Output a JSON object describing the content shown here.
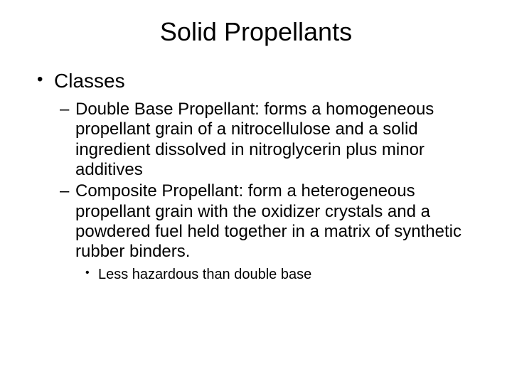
{
  "title": "Solid Propellants",
  "level1": {
    "label": "Classes"
  },
  "level2": {
    "item1": "Double Base Propellant:  forms a homogeneous propellant grain of a nitrocellulose and a solid ingredient dissolved in nitroglycerin plus minor additives",
    "item2": "Composite Propellant: form a heterogeneous propellant grain with the oxidizer crystals and a powdered fuel held together in a matrix of synthetic rubber binders."
  },
  "level3": {
    "item1": "Less hazardous than double base"
  }
}
